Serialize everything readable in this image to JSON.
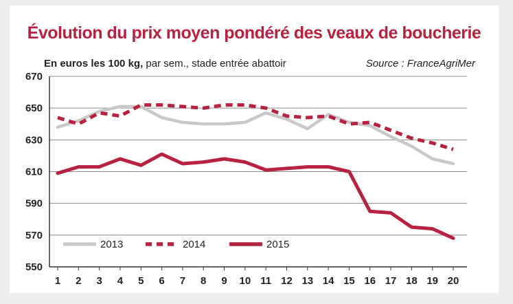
{
  "chart_data": {
    "type": "line",
    "title": "Évolution du prix moyen pondéré des veaux de boucherie",
    "subtitle_bold": "En euros les 100 kg,",
    "subtitle_rest": " par sem., stade entrée abattoir",
    "source": "Source : FranceAgriMer",
    "xlabel": "",
    "ylabel": "",
    "x": [
      1,
      2,
      3,
      4,
      5,
      6,
      7,
      8,
      9,
      10,
      11,
      12,
      13,
      14,
      15,
      16,
      17,
      18,
      19,
      20
    ],
    "ylim": [
      550,
      670
    ],
    "yticks": [
      550,
      570,
      590,
      610,
      630,
      650,
      670
    ],
    "grid": true,
    "legend_position": "bottom-left",
    "series": [
      {
        "name": "2013",
        "color": "#c8c8c8",
        "style": "solid",
        "values": [
          638,
          642,
          648,
          651,
          651,
          644,
          641,
          640,
          640,
          641,
          647,
          643,
          637,
          646,
          641,
          639,
          632,
          626,
          618,
          615
        ]
      },
      {
        "name": "2014",
        "color": "#b8213f",
        "style": "dashed",
        "values": [
          644,
          640,
          647,
          645,
          652,
          652,
          651,
          650,
          652,
          652,
          650,
          645,
          644,
          645,
          640,
          641,
          636,
          631,
          628,
          624
        ]
      },
      {
        "name": "2015",
        "color": "#b8213f",
        "style": "solid",
        "values": [
          609,
          613,
          613,
          618,
          614,
          621,
          615,
          616,
          618,
          616,
          611,
          612,
          613,
          613,
          610,
          585,
          584,
          575,
          574,
          568
        ]
      }
    ]
  }
}
